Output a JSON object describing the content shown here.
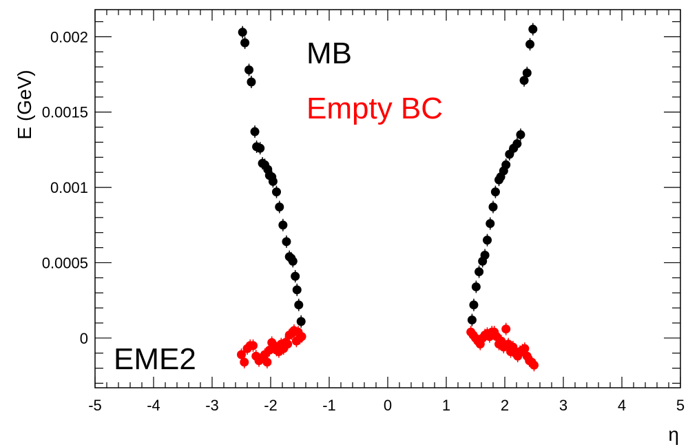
{
  "chart_data": {
    "type": "scatter",
    "title": "",
    "xlabel": "η",
    "ylabel": "E (GeV)",
    "xlim": [
      -5,
      5
    ],
    "ylim": [
      -0.00033,
      0.00218
    ],
    "x_ticks": [
      -5,
      -4,
      -3,
      -2,
      -1,
      0,
      1,
      2,
      3,
      4,
      5
    ],
    "x_tick_labels": [
      "-5",
      "-4",
      "-3",
      "-2",
      "-1",
      "0",
      "1",
      "2",
      "3",
      "4",
      "5"
    ],
    "y_ticks": [
      0,
      0.0005,
      0.001,
      0.0015,
      0.002
    ],
    "y_tick_labels": [
      "0",
      "0.0005",
      "0.001",
      "0.0015",
      "0.002"
    ],
    "grid": false,
    "legend_placement": "top-center",
    "panel_label": "EME2",
    "series": [
      {
        "name": "MB",
        "color": "#000000",
        "points": [
          [
            -2.48,
            0.00203
          ],
          [
            -2.44,
            0.00196
          ],
          [
            -2.37,
            0.00178
          ],
          [
            -2.33,
            0.0017
          ],
          [
            -2.27,
            0.00137
          ],
          [
            -2.24,
            0.00127
          ],
          [
            -2.18,
            0.00126
          ],
          [
            -2.14,
            0.00116
          ],
          [
            -2.1,
            0.00115
          ],
          [
            -2.05,
            0.00112
          ],
          [
            -2.02,
            0.00108
          ],
          [
            -1.98,
            0.00107
          ],
          [
            -1.96,
            0.00104
          ],
          [
            -1.9,
            0.00097
          ],
          [
            -1.85,
            0.00087
          ],
          [
            -1.79,
            0.00075
          ],
          [
            -1.73,
            0.00064
          ],
          [
            -1.68,
            0.00054
          ],
          [
            -1.65,
            0.00053
          ],
          [
            -1.62,
            0.00051
          ],
          [
            -1.58,
            0.00041
          ],
          [
            -1.55,
            0.00032
          ],
          [
            -1.52,
            0.00022
          ],
          [
            -1.48,
            0.00011
          ],
          [
            1.44,
            0.00012
          ],
          [
            1.47,
            0.00022
          ],
          [
            1.51,
            0.00034
          ],
          [
            1.56,
            0.00044
          ],
          [
            1.62,
            0.00051
          ],
          [
            1.66,
            0.00055
          ],
          [
            1.7,
            0.00065
          ],
          [
            1.75,
            0.00076
          ],
          [
            1.8,
            0.00087
          ],
          [
            1.84,
            0.00097
          ],
          [
            1.9,
            0.00105
          ],
          [
            1.93,
            0.00107
          ],
          [
            1.98,
            0.00111
          ],
          [
            2.02,
            0.00115
          ],
          [
            2.08,
            0.00122
          ],
          [
            2.15,
            0.00126
          ],
          [
            2.21,
            0.00129
          ],
          [
            2.27,
            0.00135
          ],
          [
            2.33,
            0.00171
          ],
          [
            2.38,
            0.00176
          ],
          [
            2.43,
            0.00195
          ],
          [
            2.48,
            0.00205
          ]
        ]
      },
      {
        "name": "Empty BC",
        "color": "#ff0000",
        "points": [
          [
            -2.5,
            -0.00011
          ],
          [
            -2.45,
            -0.00016
          ],
          [
            -2.4,
            -7e-05
          ],
          [
            -2.35,
            -5e-05
          ],
          [
            -2.3,
            -5e-05
          ],
          [
            -2.25,
            -0.00012
          ],
          [
            -2.2,
            -0.00015
          ],
          [
            -2.15,
            -0.00013
          ],
          [
            -2.1,
            -0.00011
          ],
          [
            -2.06,
            -0.00016
          ],
          [
            -2.02,
            -8e-05
          ],
          [
            -1.98,
            -3e-05
          ],
          [
            -1.94,
            -5e-05
          ],
          [
            -1.9,
            -8e-05
          ],
          [
            -1.86,
            -9e-05
          ],
          [
            -1.82,
            -4e-05
          ],
          [
            -1.78,
            -7e-05
          ],
          [
            -1.75,
            -3e-05
          ],
          [
            -1.71,
            -4e-05
          ],
          [
            -1.68,
            2e-05
          ],
          [
            -1.64,
            3e-05
          ],
          [
            -1.6,
            5e-05
          ],
          [
            -1.56,
            -2e-05
          ],
          [
            -1.53,
            4e-05
          ],
          [
            -1.5,
            0.0
          ],
          [
            -1.47,
            1e-05
          ],
          [
            1.42,
            4e-05
          ],
          [
            1.46,
            2e-05
          ],
          [
            1.5,
            0.0
          ],
          [
            1.54,
            -2e-05
          ],
          [
            1.58,
            -4e-05
          ],
          [
            1.62,
            0.0
          ],
          [
            1.66,
            2e-05
          ],
          [
            1.7,
            3e-05
          ],
          [
            1.74,
            1e-05
          ],
          [
            1.78,
            4e-05
          ],
          [
            1.82,
            4e-05
          ],
          [
            1.86,
            1e-05
          ],
          [
            1.9,
            -4e-05
          ],
          [
            1.94,
            -2e-05
          ],
          [
            1.98,
            -6e-05
          ],
          [
            2.02,
            6e-05
          ],
          [
            2.06,
            -4e-05
          ],
          [
            2.1,
            -9e-05
          ],
          [
            2.14,
            -6e-05
          ],
          [
            2.18,
            -0.0001
          ],
          [
            2.22,
            -0.00012
          ],
          [
            2.26,
            -9e-05
          ],
          [
            2.3,
            -8e-05
          ],
          [
            2.34,
            -7e-05
          ],
          [
            2.38,
            -0.00012
          ],
          [
            2.42,
            -0.00015
          ],
          [
            2.46,
            -0.00016
          ],
          [
            2.5,
            -0.00018
          ]
        ]
      }
    ]
  }
}
